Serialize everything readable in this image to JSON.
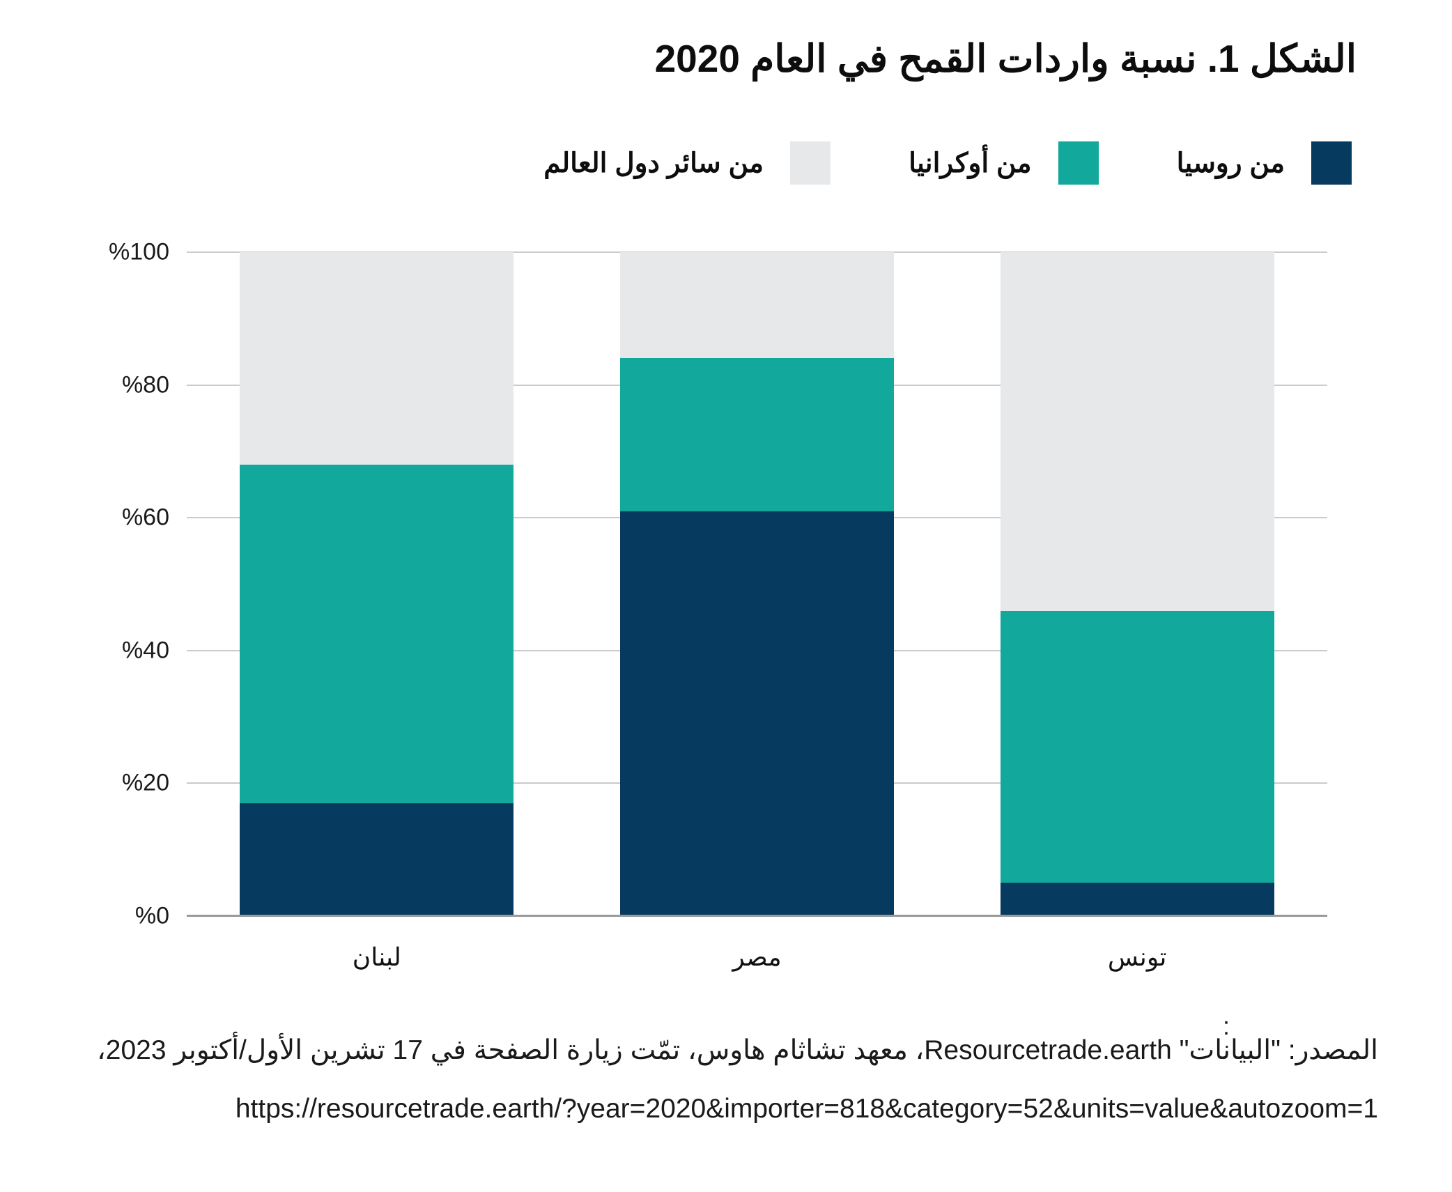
{
  "title": "الشكل 1. نسبة واردات القمح في العام 2020",
  "chart_data": {
    "type": "bar",
    "stacked": true,
    "stack_unit": "percent",
    "categories": [
      "لبنان",
      "مصر",
      "تونس"
    ],
    "series": [
      {
        "name": "من روسيا",
        "color": "#063b5f",
        "values": [
          17,
          61,
          5
        ]
      },
      {
        "name": "من أوكرانيا",
        "color": "#12a89c",
        "values": [
          51,
          23,
          41
        ]
      },
      {
        "name": "من سائر دول العالم",
        "color": "#e7e8ea",
        "values": [
          32,
          16,
          54
        ]
      }
    ],
    "yticks": [
      "%0",
      "%20",
      "%40",
      "%60",
      "%80",
      "%100"
    ],
    "ylim": [
      0,
      100
    ],
    "grid": true,
    "legend_position": "top-right",
    "axis_color": "#9a9a9a",
    "gridline_color": "#cbcbcb"
  },
  "footer": {
    "colon_mark": ":",
    "source_line": "المصدر: \"البيانات\" Resourcetrade.earth، معهد تشاثام هاوس، تمّت زيارة الصفحة في 17 تشرين الأول/أكتوبر 2023،",
    "url_line": "https://resourcetrade.earth/?year=2020&importer=818&category=52&units=value&autozoom=1"
  }
}
